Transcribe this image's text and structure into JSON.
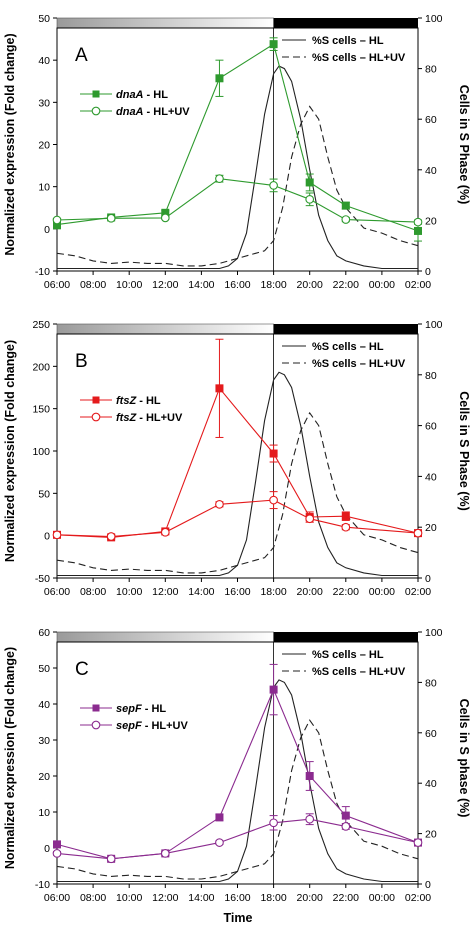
{
  "figure": {
    "xlabel": "Time"
  },
  "chart_data": [
    {
      "panel_label": "A",
      "type": "line",
      "x": [
        "06:00",
        "08:00",
        "10:00",
        "12:00",
        "14:00",
        "16:00",
        "18:00",
        "20:00",
        "22:00",
        "00:00",
        "02:00"
      ],
      "ylabel": "Normalized expression (Fold change)",
      "ylabel_right": "Cells in S Phase (%)",
      "ylim": [
        -10,
        50
      ],
      "yticks": [
        -10,
        0,
        10,
        20,
        30,
        40,
        50
      ],
      "y2lim": [
        0,
        100
      ],
      "y2ticks": [
        0,
        20,
        40,
        60,
        80,
        100
      ],
      "accent_color": "#2e9a2e",
      "series": [
        {
          "name_gene": "dnaA",
          "name_suffix": " - HL",
          "marker": "filled-square",
          "x": [
            6,
            9,
            12,
            15,
            18,
            20,
            22,
            26
          ],
          "y": [
            1,
            2.7,
            3.8,
            35.7,
            43.8,
            11,
            5.5,
            -0.5
          ],
          "err": [
            1,
            0.4,
            0.5,
            4.3,
            1.5,
            2.0,
            0.8,
            2.4
          ]
        },
        {
          "name_gene": "dnaA",
          "name_suffix": " - HL+UV",
          "marker": "open-circle",
          "x": [
            6,
            9,
            12,
            15,
            18,
            20,
            22,
            26
          ],
          "y": [
            2.1,
            2.5,
            2.6,
            11.9,
            10.3,
            7,
            2.2,
            1.6
          ],
          "err": [
            0.3,
            0.3,
            0.3,
            0.8,
            1.5,
            1.5,
            0.5,
            0.5
          ]
        }
      ],
      "s_phase": [
        {
          "name": "%S cells – HL",
          "style": "solid",
          "x": [
            6,
            8,
            10,
            12,
            14,
            15,
            15.5,
            16,
            16.5,
            17,
            17.5,
            18,
            18.3,
            18.6,
            19,
            19.5,
            20,
            20.5,
            21,
            21.5,
            22,
            23,
            24,
            25,
            26
          ],
          "y": [
            1,
            1,
            1,
            1,
            1,
            1,
            2,
            5,
            15,
            38,
            62,
            78,
            81,
            80,
            75,
            60,
            40,
            22,
            12,
            6,
            4,
            2,
            1,
            1,
            1
          ]
        },
        {
          "name": "%S cells – HL+UV",
          "style": "dashed",
          "x": [
            6,
            7,
            8,
            9,
            10,
            11,
            12,
            13,
            14,
            15,
            16,
            17,
            17.5,
            18,
            18.5,
            19,
            19.5,
            20,
            20.5,
            21,
            21.5,
            22,
            23,
            24,
            25,
            26
          ],
          "y": [
            7,
            6,
            4,
            3,
            3.5,
            3,
            3,
            2,
            2,
            3,
            5,
            7,
            8,
            12,
            25,
            45,
            58,
            65,
            60,
            45,
            32,
            25,
            17,
            15,
            12,
            10
          ]
        }
      ]
    },
    {
      "panel_label": "B",
      "type": "line",
      "x": [
        "06:00",
        "08:00",
        "10:00",
        "12:00",
        "14:00",
        "16:00",
        "18:00",
        "20:00",
        "22:00",
        "00:00",
        "02:00"
      ],
      "ylabel": "Normalized expression (Fold change)",
      "ylabel_right": "Cells in S Phase (%)",
      "ylim": [
        -50,
        250
      ],
      "yticks": [
        -50,
        0,
        50,
        100,
        150,
        200,
        250
      ],
      "y2lim": [
        0,
        100
      ],
      "y2ticks": [
        0,
        20,
        40,
        60,
        80,
        100
      ],
      "accent_color": "#e41a1c",
      "series": [
        {
          "name_gene": "ftsZ",
          "name_suffix": " - HL",
          "marker": "filled-square",
          "x": [
            6,
            9,
            12,
            15,
            18,
            20,
            22,
            26
          ],
          "y": [
            1,
            -2,
            5,
            174,
            97,
            22,
            23,
            3
          ],
          "err": [
            2,
            2,
            2,
            58,
            10,
            6,
            5,
            2
          ]
        },
        {
          "name_gene": "ftsZ",
          "name_suffix": " - HL+UV",
          "marker": "open-circle",
          "x": [
            6,
            9,
            12,
            15,
            18,
            20,
            22,
            26
          ],
          "y": [
            1,
            -1,
            4,
            37,
            42,
            20,
            10,
            3
          ],
          "err": [
            2,
            2,
            2,
            3,
            10,
            4,
            3,
            2
          ]
        }
      ],
      "s_phase": [
        {
          "name": "%S cells – HL",
          "style": "solid",
          "x": [
            6,
            8,
            10,
            12,
            14,
            15,
            15.5,
            16,
            16.5,
            17,
            17.5,
            18,
            18.3,
            18.6,
            19,
            19.5,
            20,
            20.5,
            21,
            21.5,
            22,
            23,
            24,
            25,
            26
          ],
          "y": [
            1,
            1,
            1,
            1,
            1,
            1,
            2,
            5,
            15,
            38,
            62,
            78,
            81,
            80,
            75,
            60,
            40,
            22,
            12,
            6,
            4,
            2,
            1,
            1,
            1
          ]
        },
        {
          "name": "%S cells – HL+UV",
          "style": "dashed",
          "x": [
            6,
            7,
            8,
            9,
            10,
            11,
            12,
            13,
            14,
            15,
            16,
            17,
            17.5,
            18,
            18.5,
            19,
            19.5,
            20,
            20.5,
            21,
            21.5,
            22,
            23,
            24,
            25,
            26
          ],
          "y": [
            7,
            6,
            4,
            3,
            3.5,
            3,
            3,
            2,
            2,
            3,
            5,
            7,
            8,
            12,
            25,
            45,
            58,
            65,
            60,
            45,
            32,
            25,
            17,
            15,
            12,
            10
          ]
        }
      ]
    },
    {
      "panel_label": "C",
      "type": "line",
      "x": [
        "06:00",
        "08:00",
        "10:00",
        "12:00",
        "14:00",
        "16:00",
        "18:00",
        "20:00",
        "22:00",
        "00:00",
        "02:00"
      ],
      "ylabel": "Normalized expression (Fold change)",
      "ylabel_right": "Cells in S phase (%)",
      "ylim": [
        -10,
        60
      ],
      "yticks": [
        -10,
        0,
        10,
        20,
        30,
        40,
        50,
        60
      ],
      "y2lim": [
        0,
        100
      ],
      "y2ticks": [
        0,
        20,
        40,
        60,
        80,
        100
      ],
      "accent_color": "#8b2b8f",
      "series": [
        {
          "name_gene": "sepF",
          "name_suffix": " - HL",
          "marker": "filled-square",
          "x": [
            6,
            9,
            12,
            15,
            18,
            20,
            22,
            26
          ],
          "y": [
            1,
            -3,
            -1.5,
            8.5,
            44,
            20,
            9,
            1.5
          ],
          "err": [
            0.5,
            0.5,
            0.5,
            0.8,
            7,
            4,
            2.5,
            0.5
          ]
        },
        {
          "name_gene": "sepF",
          "name_suffix": " - HL+UV",
          "marker": "open-circle",
          "x": [
            6,
            9,
            12,
            15,
            18,
            20,
            22,
            26
          ],
          "y": [
            -1.5,
            -3,
            -1.5,
            1.5,
            7,
            8,
            6,
            1.5
          ],
          "err": [
            0.5,
            0.5,
            0.5,
            0.5,
            2,
            1.5,
            0.8,
            0.5
          ]
        }
      ],
      "s_phase": [
        {
          "name": "%S cells – HL",
          "style": "solid",
          "x": [
            6,
            8,
            10,
            12,
            14,
            15,
            15.5,
            16,
            16.5,
            17,
            17.5,
            18,
            18.3,
            18.6,
            19,
            19.5,
            20,
            20.5,
            21,
            21.5,
            22,
            23,
            24,
            25,
            26
          ],
          "y": [
            1,
            1,
            1,
            1,
            1,
            1,
            2,
            5,
            15,
            38,
            62,
            78,
            81,
            80,
            75,
            60,
            40,
            22,
            12,
            6,
            4,
            2,
            1,
            1,
            1
          ]
        },
        {
          "name": "%S cells – HL+UV",
          "style": "dashed",
          "x": [
            6,
            7,
            8,
            9,
            10,
            11,
            12,
            13,
            14,
            15,
            16,
            17,
            17.5,
            18,
            18.5,
            19,
            19.5,
            20,
            20.5,
            21,
            21.5,
            22,
            23,
            24,
            25,
            26
          ],
          "y": [
            7,
            6,
            4,
            3,
            3.5,
            3,
            3,
            2,
            2,
            3,
            5,
            7,
            8,
            12,
            25,
            45,
            58,
            65,
            60,
            45,
            32,
            25,
            17,
            15,
            12,
            10
          ]
        }
      ]
    }
  ]
}
